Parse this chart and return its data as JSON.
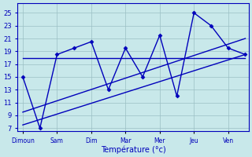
{
  "x_labels": [
    "Dimoun",
    "Sam",
    "Dim",
    "Mar",
    "Mer",
    "Jeu",
    "Ven"
  ],
  "yticks": [
    7,
    9,
    11,
    13,
    15,
    17,
    19,
    21,
    23,
    25
  ],
  "ylim": [
    6.5,
    26.5
  ],
  "xlim": [
    -0.15,
    6.6
  ],
  "xlabel": "Température (°c)",
  "background_color": "#c8e8ea",
  "grid_color": "#9bbfc4",
  "line_color": "#0000bb",
  "linewidth": 1.0,
  "markersize": 2.5,
  "series_zigzag": {
    "x": [
      0,
      0.5,
      1.0,
      1.5,
      2.0,
      2.5,
      3.0,
      3.5,
      4.0,
      4.5,
      5.0,
      5.5,
      6.0,
      6.5
    ],
    "y": [
      15,
      7,
      18.5,
      19.5,
      20.5,
      13,
      19.5,
      15,
      21.5,
      12,
      25,
      23,
      19.5,
      18.5
    ]
  },
  "series_trend_low": {
    "x": [
      0,
      6.5
    ],
    "y": [
      7.5,
      18.5
    ]
  },
  "series_trend_mid": {
    "x": [
      0,
      6.5
    ],
    "y": [
      9.5,
      21.0
    ]
  },
  "series_flat": {
    "x": [
      0,
      6.5
    ],
    "y": [
      18,
      18
    ]
  }
}
